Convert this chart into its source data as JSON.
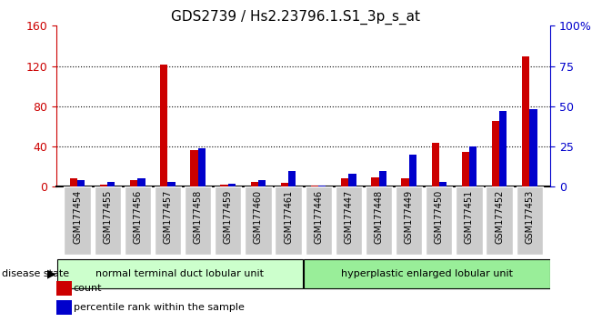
{
  "title": "GDS2739 / Hs2.23796.1.S1_3p_s_at",
  "categories": [
    "GSM177454",
    "GSM177455",
    "GSM177456",
    "GSM177457",
    "GSM177458",
    "GSM177459",
    "GSM177460",
    "GSM177461",
    "GSM177446",
    "GSM177447",
    "GSM177448",
    "GSM177449",
    "GSM177450",
    "GSM177451",
    "GSM177452",
    "GSM177453"
  ],
  "count_values": [
    8,
    2,
    7,
    121,
    36,
    2,
    5,
    4,
    1,
    8,
    9,
    8,
    44,
    35,
    65,
    130
  ],
  "percentile_values": [
    4,
    3,
    5,
    3,
    24,
    2,
    4,
    10,
    1,
    8,
    10,
    20,
    3,
    25,
    47,
    48
  ],
  "left_ylim": [
    0,
    160
  ],
  "left_yticks": [
    0,
    40,
    80,
    120,
    160
  ],
  "right_ylim": [
    0,
    100
  ],
  "right_yticks": [
    0,
    25,
    50,
    75,
    100
  ],
  "right_yticklabels": [
    "0",
    "25",
    "50",
    "75",
    "100%"
  ],
  "count_color": "#cc0000",
  "percentile_color": "#0000cc",
  "bar_width": 0.25,
  "group1_label": "normal terminal duct lobular unit",
  "group2_label": "hyperplastic enlarged lobular unit",
  "group1_color": "#ccffcc",
  "group2_color": "#99ee99",
  "group1_count": 8,
  "group2_count": 8,
  "disease_state_label": "disease state",
  "legend_count_label": "count",
  "legend_percentile_label": "percentile rank within the sample",
  "cell_bg_color": "#cccccc",
  "cell_border_color": "#ffffff",
  "grid_color": "#000000",
  "background_color": "#ffffff"
}
